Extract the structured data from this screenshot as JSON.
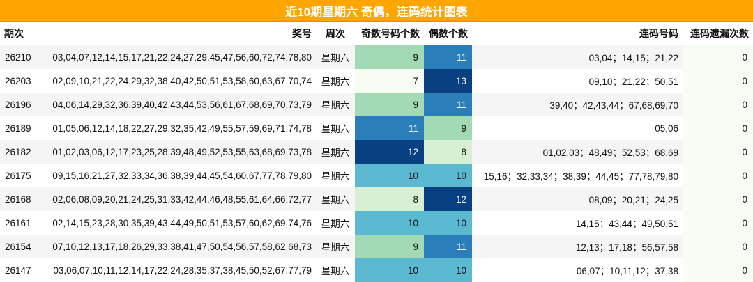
{
  "title": "近10期星期六 奇偶，连码统计图表",
  "headers": {
    "issue": "期次",
    "prize": "奖号",
    "week": "周次",
    "odd": "奇数号码个数",
    "even": "偶数个数",
    "consecutive": "连码号码",
    "miss": "连码遗漏次数"
  },
  "colors": {
    "7": "#f7fcf5",
    "8": "#d7efd2",
    "9": "#a1dab4",
    "10": "#5ab9d1",
    "11": "#2a7fbb",
    "12": "#084081",
    "13": "#084081",
    "title_bg": "#ffa500"
  },
  "rows": [
    {
      "issue": "26210",
      "prize": "03,04,07,12,14,15,17,21,22,24,27,29,45,47,56,60,72,74,78,80",
      "week": "星期六",
      "odd": 9,
      "even": 11,
      "consecutive": "03,04；14,15；21,22",
      "miss": 0
    },
    {
      "issue": "26203",
      "prize": "02,09,10,21,22,24,29,32,38,40,42,50,51,53,58,60,63,67,70,74",
      "week": "星期六",
      "odd": 7,
      "even": 13,
      "consecutive": "09,10；21,22；50,51",
      "miss": 0
    },
    {
      "issue": "26196",
      "prize": "04,06,14,29,32,36,39,40,42,43,44,53,56,61,67,68,69,70,73,79",
      "week": "星期六",
      "odd": 9,
      "even": 11,
      "consecutive": "39,40；42,43,44；67,68,69,70",
      "miss": 0
    },
    {
      "issue": "26189",
      "prize": "01,05,06,12,14,18,22,27,29,32,35,42,49,55,57,59,69,71,74,78",
      "week": "星期六",
      "odd": 11,
      "even": 9,
      "consecutive": "05,06",
      "miss": 0
    },
    {
      "issue": "26182",
      "prize": "01,02,03,06,12,17,23,25,28,39,48,49,52,53,55,63,68,69,73,78",
      "week": "星期六",
      "odd": 12,
      "even": 8,
      "consecutive": "01,02,03；48,49；52,53；68,69",
      "miss": 0
    },
    {
      "issue": "26175",
      "prize": "09,15,16,21,27,32,33,34,36,38,39,44,45,54,60,67,77,78,79,80",
      "week": "星期六",
      "odd": 10,
      "even": 10,
      "consecutive": "15,16；32,33,34；38,39；44,45；77,78,79,80",
      "miss": 0
    },
    {
      "issue": "26168",
      "prize": "02,06,08,09,20,21,24,25,31,33,42,44,46,48,55,61,64,66,72,77",
      "week": "星期六",
      "odd": 8,
      "even": 12,
      "consecutive": "08,09；20,21；24,25",
      "miss": 0
    },
    {
      "issue": "26161",
      "prize": "02,14,15,23,28,30,35,39,43,44,49,50,51,53,57,60,62,69,74,76",
      "week": "星期六",
      "odd": 10,
      "even": 10,
      "consecutive": "14,15；43,44；49,50,51",
      "miss": 0
    },
    {
      "issue": "26154",
      "prize": "07,10,12,13,17,18,26,29,33,38,41,47,50,54,56,57,58,62,68,73",
      "week": "星期六",
      "odd": 9,
      "even": 11,
      "consecutive": "12,13；17,18；56,57,58",
      "miss": 0
    },
    {
      "issue": "26147",
      "prize": "03,06,07,10,11,12,14,17,22,24,28,35,37,38,45,50,52,67,77,79",
      "week": "星期六",
      "odd": 10,
      "even": 10,
      "consecutive": "06,07；10,11,12；37,38",
      "miss": 0
    }
  ]
}
